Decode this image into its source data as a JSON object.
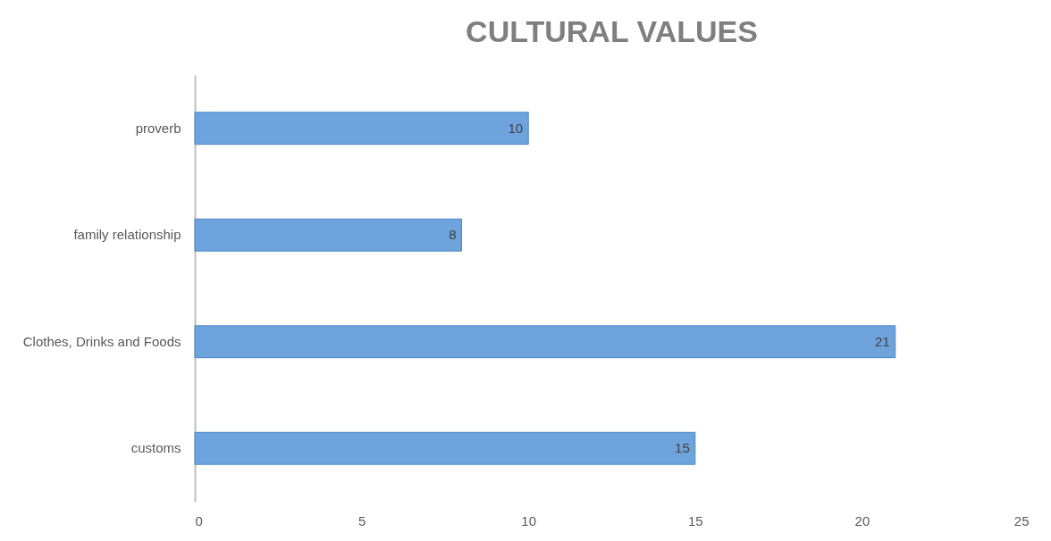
{
  "chart_data": {
    "type": "bar",
    "orientation": "horizontal",
    "title": "CULTURAL VALUES",
    "categories": [
      "proverb",
      "family relationship",
      "Clothes, Drinks and Foods",
      "customs"
    ],
    "values": [
      10,
      8,
      21,
      15
    ],
    "color": "#6fa3dc",
    "xlim": [
      0,
      25
    ],
    "xticks": [
      0,
      5,
      10,
      15,
      20,
      25
    ],
    "grid": false,
    "data_labels": true
  }
}
